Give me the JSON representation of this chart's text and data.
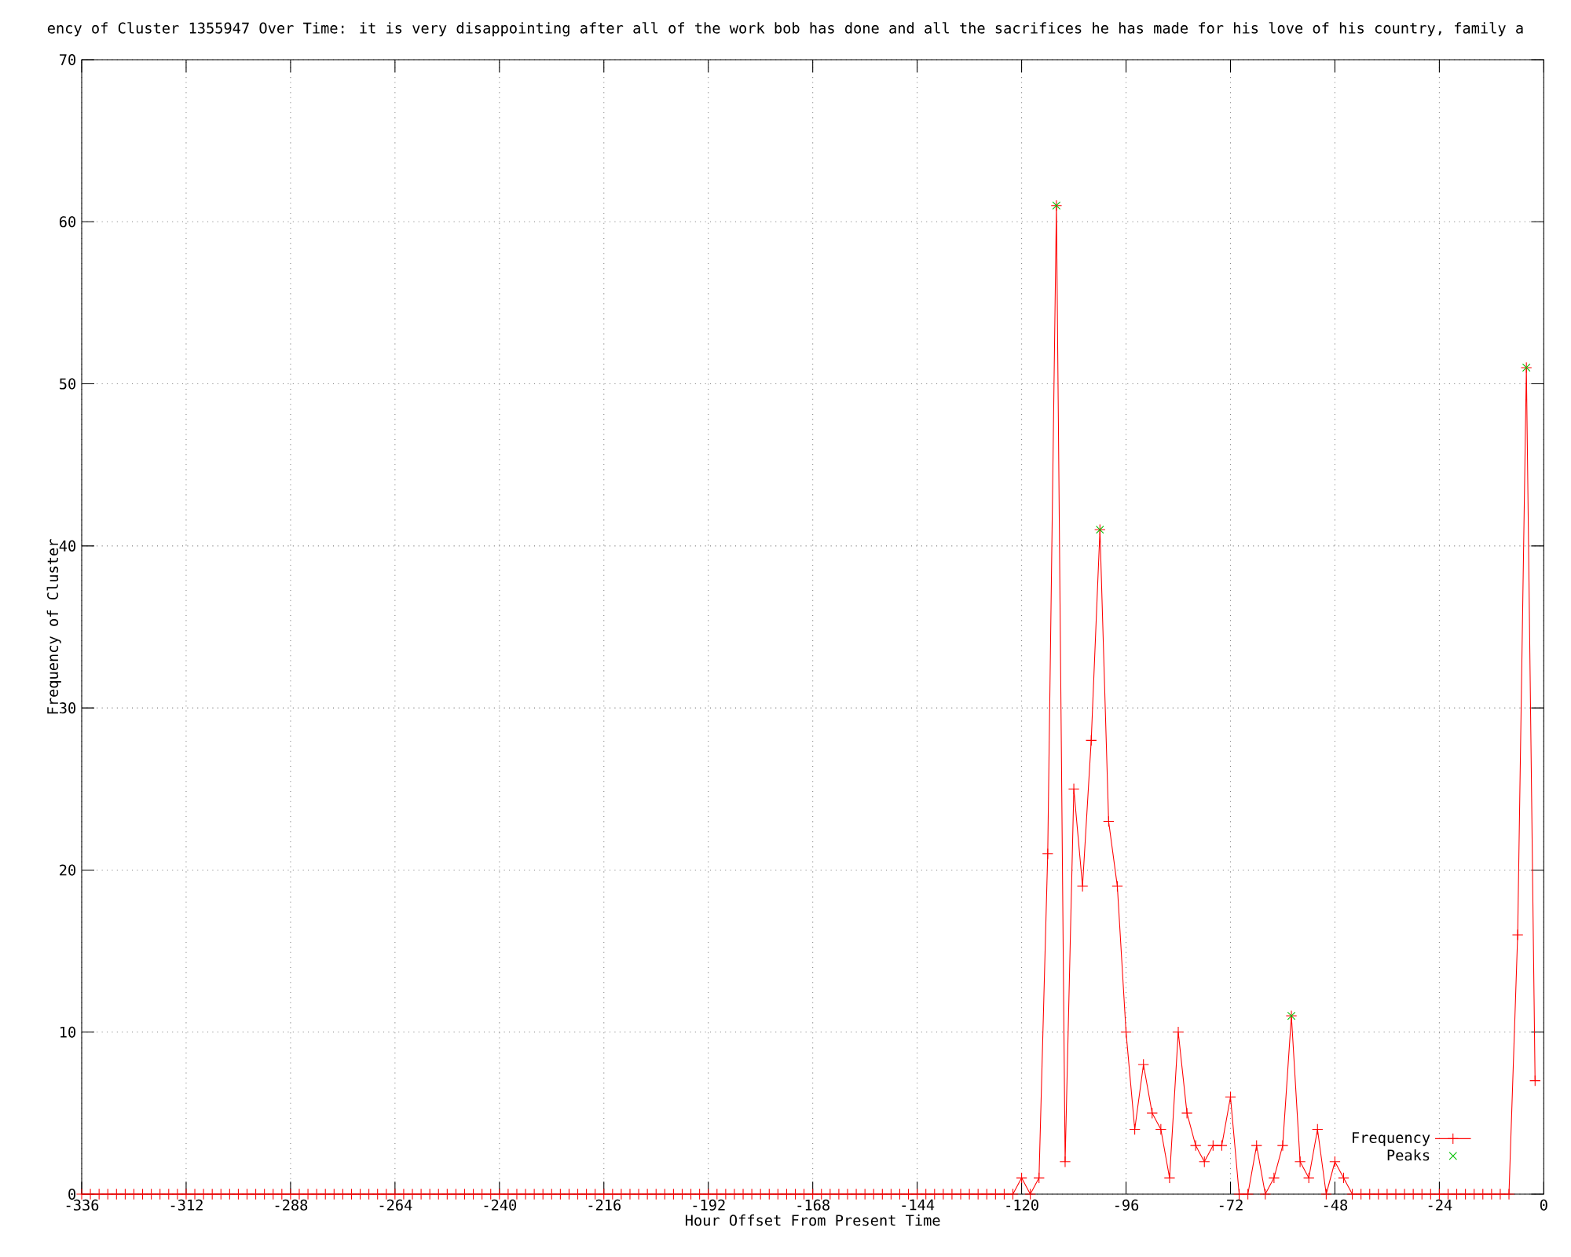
{
  "chart_data": {
    "type": "line",
    "title": "ency of Cluster 1355947 Over Time: it is very disappointing after all of the work bob has done and all the sacrifices he has made for his love of his country, family a",
    "xlabel": "Hour Offset From Present Time",
    "ylabel": "Frequency of Cluster",
    "x": [
      -336,
      -334,
      -332,
      -330,
      -328,
      -326,
      -324,
      -322,
      -320,
      -318,
      -316,
      -314,
      -312,
      -310,
      -308,
      -306,
      -304,
      -302,
      -300,
      -298,
      -296,
      -294,
      -292,
      -290,
      -288,
      -286,
      -284,
      -282,
      -280,
      -278,
      -276,
      -274,
      -272,
      -270,
      -268,
      -266,
      -264,
      -262,
      -260,
      -258,
      -256,
      -254,
      -252,
      -250,
      -248,
      -246,
      -244,
      -242,
      -240,
      -238,
      -236,
      -234,
      -232,
      -230,
      -228,
      -226,
      -224,
      -222,
      -220,
      -218,
      -216,
      -214,
      -212,
      -210,
      -208,
      -206,
      -204,
      -202,
      -200,
      -198,
      -196,
      -194,
      -192,
      -190,
      -188,
      -186,
      -184,
      -182,
      -180,
      -178,
      -176,
      -174,
      -172,
      -170,
      -168,
      -166,
      -164,
      -162,
      -160,
      -158,
      -156,
      -154,
      -152,
      -150,
      -148,
      -146,
      -144,
      -142,
      -140,
      -138,
      -136,
      -134,
      -132,
      -130,
      -128,
      -126,
      -124,
      -122,
      -120,
      -118,
      -116,
      -114,
      -112,
      -110,
      -108,
      -106,
      -104,
      -102,
      -100,
      -98,
      -96,
      -94,
      -92,
      -90,
      -88,
      -86,
      -84,
      -82,
      -80,
      -78,
      -76,
      -74,
      -72,
      -70,
      -68,
      -66,
      -64,
      -62,
      -60,
      -58,
      -56,
      -54,
      -52,
      -50,
      -48,
      -46,
      -44,
      -42,
      -40,
      -38,
      -36,
      -34,
      -32,
      -30,
      -28,
      -26,
      -24,
      -22,
      -20,
      -18,
      -16,
      -14,
      -12,
      -10,
      -8,
      -6,
      -4,
      -2
    ],
    "series": [
      {
        "name": "Frequency",
        "color": "#ff0000",
        "values": [
          0,
          0,
          0,
          0,
          0,
          0,
          0,
          0,
          0,
          0,
          0,
          0,
          0,
          0,
          0,
          0,
          0,
          0,
          0,
          0,
          0,
          0,
          0,
          0,
          0,
          0,
          0,
          0,
          0,
          0,
          0,
          0,
          0,
          0,
          0,
          0,
          0,
          0,
          0,
          0,
          0,
          0,
          0,
          0,
          0,
          0,
          0,
          0,
          0,
          0,
          0,
          0,
          0,
          0,
          0,
          0,
          0,
          0,
          0,
          0,
          0,
          0,
          0,
          0,
          0,
          0,
          0,
          0,
          0,
          0,
          0,
          0,
          0,
          0,
          0,
          0,
          0,
          0,
          0,
          0,
          0,
          0,
          0,
          0,
          0,
          0,
          0,
          0,
          0,
          0,
          0,
          0,
          0,
          0,
          0,
          0,
          0,
          0,
          0,
          0,
          0,
          0,
          0,
          0,
          0,
          0,
          0,
          0,
          1,
          0,
          1,
          21,
          61,
          2,
          25,
          19,
          28,
          41,
          23,
          19,
          10,
          4,
          8,
          5,
          4,
          1,
          10,
          5,
          3,
          2,
          3,
          3,
          6,
          0,
          0,
          3,
          0,
          1,
          3,
          11,
          2,
          1,
          4,
          0,
          2,
          1,
          0,
          0,
          0,
          0,
          0,
          0,
          0,
          0,
          0,
          0,
          0,
          0,
          0,
          0,
          0,
          0,
          0,
          0,
          0,
          16,
          51,
          7
        ]
      },
      {
        "name": "Peaks",
        "type": "scatter",
        "color": "#00c000",
        "x": [
          -112,
          -102,
          -58,
          -4
        ],
        "values": [
          61,
          41,
          11,
          51
        ]
      }
    ],
    "xlim": [
      -336,
      0
    ],
    "xticks": [
      -336,
      -312,
      -288,
      -264,
      -240,
      -216,
      -192,
      -168,
      -144,
      -120,
      -96,
      -72,
      -48,
      -24,
      0
    ],
    "ylim": [
      0,
      70
    ],
    "yticks": [
      0,
      10,
      20,
      30,
      40,
      50,
      60,
      70
    ],
    "grid": true,
    "legend": "bottom right",
    "marker": "cross"
  }
}
